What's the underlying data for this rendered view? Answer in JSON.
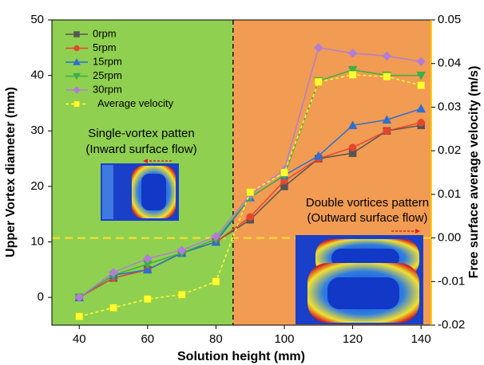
{
  "chart_data": {
    "type": "line",
    "x_label": "Solution height (mm)",
    "y_label": "Upper Vortex diameter  (mm)",
    "y2_label": "Free surface average velocity (m/s)",
    "x": [
      40,
      50,
      60,
      70,
      80,
      90,
      100,
      110,
      120,
      130,
      140
    ],
    "series": [
      {
        "name": "0rpm",
        "color": "#555555",
        "marker": "square",
        "values": [
          0,
          3.5,
          5,
          8,
          10,
          14,
          20,
          25,
          26,
          30,
          31
        ]
      },
      {
        "name": "5rpm",
        "color": "#e8452c",
        "marker": "circle",
        "values": [
          0,
          3.5,
          5,
          8,
          10,
          14.5,
          21,
          25,
          27,
          30,
          31.5
        ]
      },
      {
        "name": "15rpm",
        "color": "#2e6fd1",
        "marker": "triangle",
        "values": [
          0,
          4,
          5,
          8,
          10,
          18,
          22,
          25.5,
          31,
          32,
          34
        ]
      },
      {
        "name": "25rpm",
        "color": "#3cb043",
        "marker": "triangle-down",
        "values": [
          0,
          4,
          6,
          8,
          10.5,
          18,
          22,
          39,
          41,
          40,
          40
        ]
      },
      {
        "name": "30rpm",
        "color": "#b07ed6",
        "marker": "diamond",
        "values": [
          0,
          4.5,
          7,
          8.5,
          11,
          18.5,
          23,
          45,
          44,
          43.5,
          42.5
        ]
      },
      {
        "name": "Average velocity",
        "color": "#ffff33",
        "marker": "square",
        "dashed": true,
        "axis": "y2",
        "values": [
          -0.018,
          -0.016,
          -0.014,
          -0.013,
          -0.01,
          0.0105,
          0.015,
          0.0358,
          0.0374,
          0.037,
          0.035
        ]
      }
    ],
    "xlim": [
      32,
      143
    ],
    "xticks": [
      40,
      60,
      80,
      100,
      120,
      140
    ],
    "ylim": [
      -5,
      50
    ],
    "yticks": [
      0,
      10,
      20,
      30,
      40,
      50
    ],
    "y2lim": [
      -0.02,
      0.05
    ],
    "y2ticks": [
      -0.02,
      -0.01,
      {
        "value": 0,
        "label": "0.00"
      },
      0.01,
      0.02,
      0.03,
      0.04,
      0.05
    ],
    "divider_x": 85,
    "y2_reference": 0,
    "region_colors": [
      "#90d050",
      "#f29b52"
    ],
    "legend": "upper left",
    "annotations": [
      "Single-vortex patten",
      "(Inward surface flow)",
      "Double vortices pattern",
      "(Outward surface flow)"
    ]
  }
}
